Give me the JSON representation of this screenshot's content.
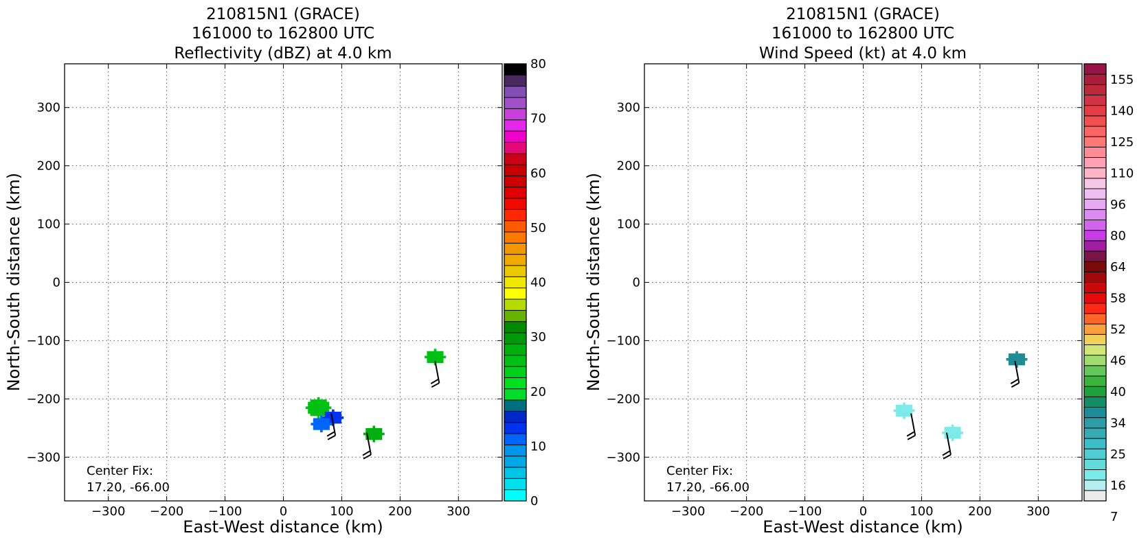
{
  "chart_data": [
    {
      "type": "heatmap",
      "title_lines": [
        "210815N1 (GRACE)",
        "161000 to 162800 UTC",
        "Reflectivity (dBZ) at 4.0 km"
      ],
      "xlabel": "East-West distance (km)",
      "ylabel": "North-South distance (km)",
      "xlim": [
        -375,
        375
      ],
      "ylim": [
        -375,
        375
      ],
      "xticks": [
        "−300",
        "−200",
        "−100",
        "0",
        "100",
        "200",
        "300"
      ],
      "xtick_values": [
        -300,
        -200,
        -100,
        0,
        100,
        200,
        300
      ],
      "yticks": [
        "300",
        "200",
        "100",
        "0",
        "−100",
        "−200",
        "−300"
      ],
      "ytick_values": [
        300,
        200,
        100,
        0,
        -100,
        -200,
        -300
      ],
      "grid": true,
      "annotation": [
        "Center Fix:",
        "17.20, -66.00"
      ],
      "colorbar": {
        "min": 0,
        "max": 80,
        "tick_labels": [
          "80",
          "70",
          "60",
          "50",
          "40",
          "30",
          "20",
          "10",
          "0"
        ],
        "tick_values": [
          80,
          70,
          60,
          50,
          40,
          30,
          20,
          10,
          0
        ],
        "colors": [
          "#00ffff",
          "#00e0ee",
          "#00c4e8",
          "#00a8e8",
          "#0096f0",
          "#0064ff",
          "#0032f0",
          "#0028c8",
          "#007080",
          "#00dc28",
          "#00e020",
          "#00d01a",
          "#00c014",
          "#00b010",
          "#009a08",
          "#008a00",
          "#64b400",
          "#b4dc00",
          "#ffff00",
          "#f0e600",
          "#ecc800",
          "#f0aa00",
          "#f49600",
          "#ff7800",
          "#ff5a00",
          "#ff2800",
          "#f00a00",
          "#e00000",
          "#d00000",
          "#c80000",
          "#cc0018",
          "#e60a78",
          "#f000c8",
          "#e628ee",
          "#c840dc",
          "#a050c8",
          "#8250b4",
          "#4a2a5e",
          "#000000"
        ]
      },
      "data_regions": [
        {
          "x": 60,
          "y": -215,
          "value": 25
        },
        {
          "x": 85,
          "y": -232,
          "value": 14
        },
        {
          "x": 65,
          "y": -243,
          "value": 12
        },
        {
          "x": 155,
          "y": -260,
          "value": 28
        },
        {
          "x": 260,
          "y": -128,
          "value": 26
        }
      ],
      "wind_barbs": [
        {
          "x": 82,
          "y": -225
        },
        {
          "x": 143,
          "y": -258
        },
        {
          "x": 260,
          "y": -135
        }
      ]
    },
    {
      "type": "heatmap",
      "title_lines": [
        "210815N1 (GRACE)",
        "161000 to 162800 UTC",
        "Wind Speed (kt) at 4.0 km"
      ],
      "xlabel": "East-West distance (km)",
      "ylabel": "North-South distance (km)",
      "xlim": [
        -375,
        375
      ],
      "ylim": [
        -375,
        375
      ],
      "xticks": [
        "−300",
        "−200",
        "−100",
        "0",
        "100",
        "200",
        "300"
      ],
      "xtick_values": [
        -300,
        -200,
        -100,
        0,
        100,
        200,
        300
      ],
      "yticks": [
        "300",
        "200",
        "100",
        "0",
        "−100",
        "−200",
        "−300"
      ],
      "ytick_values": [
        300,
        200,
        100,
        0,
        -100,
        -200,
        -300
      ],
      "grid": true,
      "annotation": [
        "Center Fix:",
        "17.20, -66.00"
      ],
      "colorbar": {
        "tick_labels": [
          "155",
          "140",
          "125",
          "110",
          "96",
          "80",
          "64",
          "58",
          "52",
          "46",
          "40",
          "34",
          "25",
          "16",
          "7"
        ],
        "tick_levels": [
          1,
          4,
          7,
          10,
          13,
          16,
          19,
          22,
          25,
          28,
          31,
          34,
          37,
          40,
          43
        ],
        "colors": [
          "#ebebeb",
          "#b4f0f0",
          "#7deaea",
          "#64dcdc",
          "#50cdd2",
          "#40bec8",
          "#38aab4",
          "#2d9ca6",
          "#1e8c96",
          "#148c64",
          "#1ea03c",
          "#3cb43c",
          "#64c85a",
          "#a0dc6e",
          "#d2e678",
          "#f0d25a",
          "#faa03c",
          "#ff6428",
          "#ff2814",
          "#e60a0a",
          "#c80a0a",
          "#a00a0a",
          "#780a0a",
          "#781446",
          "#a01ea0",
          "#c83ce6",
          "#d264ee",
          "#dc8cf0",
          "#e6aaf0",
          "#f0bef0",
          "#f5c8e6",
          "#ffb4c8",
          "#ffa0b4",
          "#ff8c96",
          "#ff7878",
          "#fa6464",
          "#f05050",
          "#e63c46",
          "#d23246",
          "#be283c",
          "#aa1e3c",
          "#961446"
        ]
      },
      "data_regions": [
        {
          "x": 70,
          "y": -220,
          "value": 9
        },
        {
          "x": 153,
          "y": -258,
          "value": 9
        },
        {
          "x": 263,
          "y": -132,
          "value": 25
        }
      ],
      "wind_barbs": [
        {
          "x": 82,
          "y": -225
        },
        {
          "x": 143,
          "y": -258
        },
        {
          "x": 260,
          "y": -135
        }
      ]
    }
  ]
}
